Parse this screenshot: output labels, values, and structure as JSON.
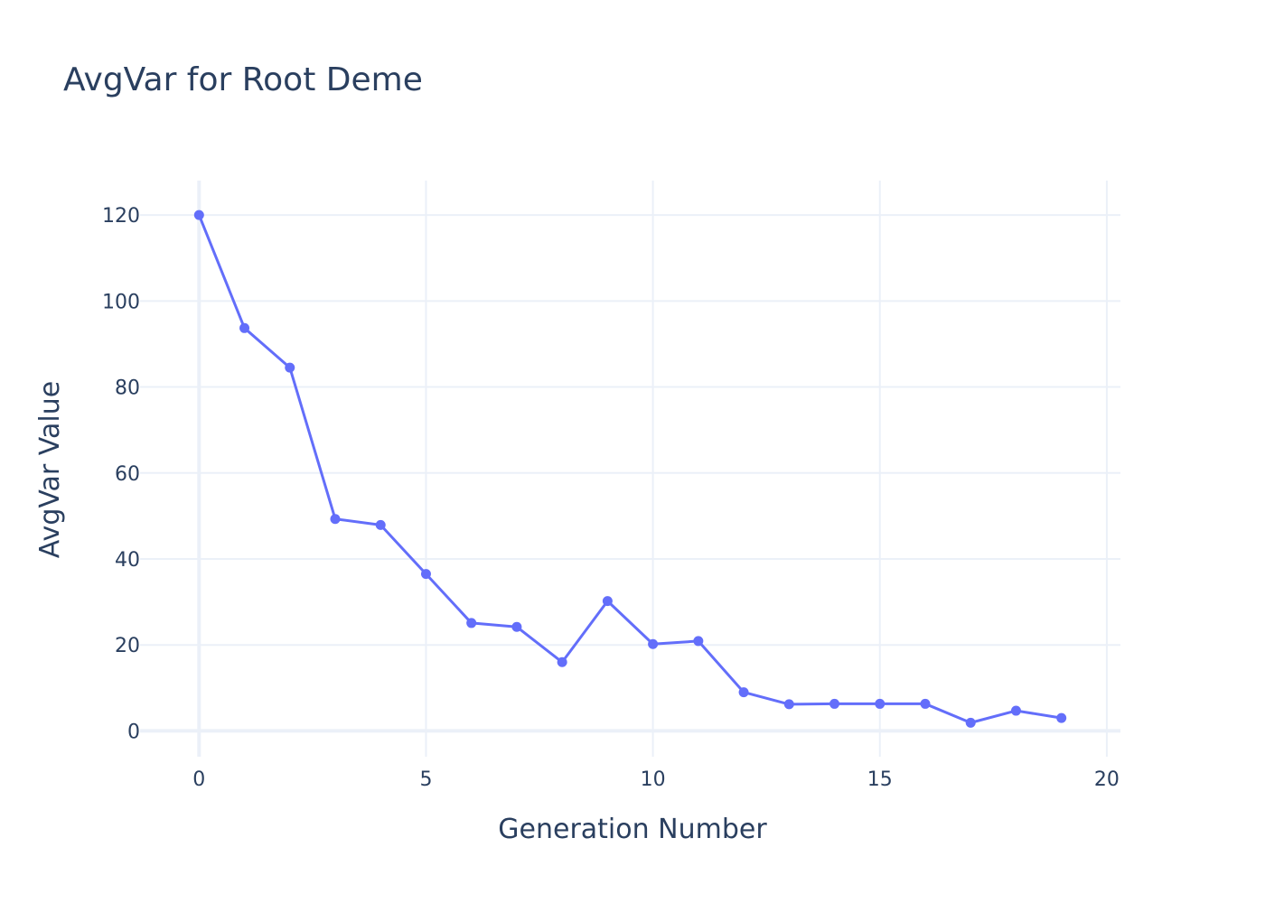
{
  "chart_data": {
    "type": "line",
    "title": "AvgVar for Root Deme",
    "xlabel": "Generation Number",
    "ylabel": "AvgVar Value",
    "x": [
      0,
      1,
      2,
      3,
      4,
      5,
      6,
      7,
      8,
      9,
      10,
      11,
      12,
      13,
      14,
      15,
      16,
      17,
      18,
      19
    ],
    "series": [
      {
        "values": [
          120,
          93.7,
          84.5,
          49.3,
          47.9,
          36.5,
          25.1,
          24.2,
          16.0,
          30.2,
          20.2,
          20.9,
          9.0,
          6.2,
          6.3,
          6.3,
          6.3,
          1.9,
          4.7,
          3.0
        ],
        "color": "#636efa",
        "mode": "lines+markers"
      }
    ],
    "xlim": [
      -1.3,
      20.3
    ],
    "ylim": [
      -6,
      128
    ],
    "xticks": [
      0,
      5,
      10,
      15,
      20
    ],
    "yticks": [
      0,
      20,
      40,
      60,
      80,
      100,
      120
    ],
    "grid": true,
    "legend": "none",
    "colors": {
      "text": "#2a3f5f",
      "grid": "#ebf0f8",
      "background": "#ffffff"
    }
  }
}
